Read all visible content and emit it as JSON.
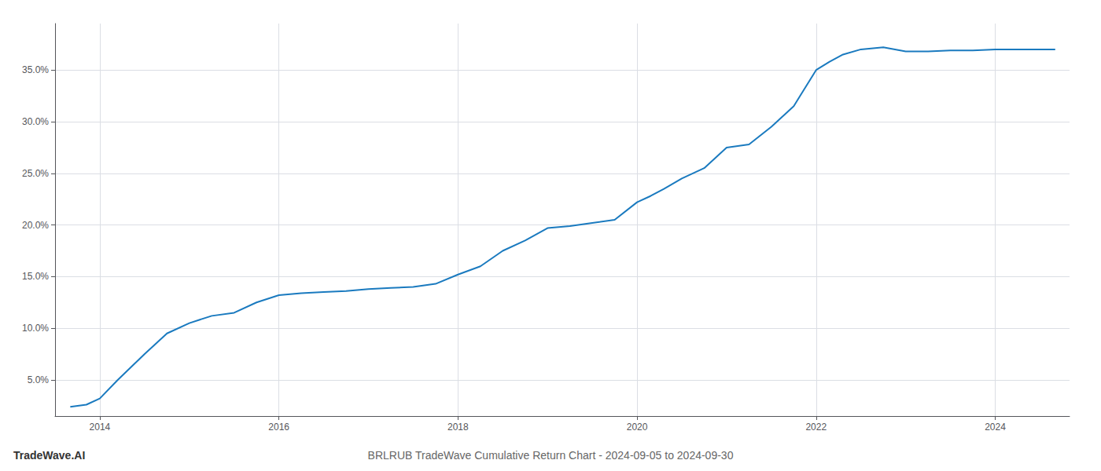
{
  "chart_data": {
    "type": "line",
    "title": "BRLRUB TradeWave Cumulative Return Chart - 2024-09-05 to 2024-09-30",
    "annotations": [
      "TradeWave.AI"
    ],
    "color": "#1a7abf",
    "x": [
      2013.67,
      2013.85,
      2014.0,
      2014.2,
      2014.5,
      2014.75,
      2015.0,
      2015.25,
      2015.5,
      2015.75,
      2016.0,
      2016.25,
      2016.5,
      2016.75,
      2017.0,
      2017.25,
      2017.5,
      2017.75,
      2018.0,
      2018.25,
      2018.5,
      2018.75,
      2019.0,
      2019.25,
      2019.5,
      2019.75,
      2020.0,
      2020.15,
      2020.3,
      2020.5,
      2020.75,
      2021.0,
      2021.25,
      2021.5,
      2021.75,
      2022.0,
      2022.15,
      2022.3,
      2022.5,
      2022.75,
      2023.0,
      2023.25,
      2023.5,
      2023.75,
      2024.0,
      2024.25,
      2024.5,
      2024.67
    ],
    "values": [
      2.4,
      2.6,
      3.2,
      5.0,
      7.5,
      9.5,
      10.5,
      11.2,
      11.5,
      12.5,
      13.2,
      13.4,
      13.5,
      13.6,
      13.8,
      13.9,
      14.0,
      14.3,
      15.2,
      16.0,
      17.5,
      18.5,
      19.7,
      19.9,
      20.2,
      20.5,
      22.2,
      22.8,
      23.5,
      24.5,
      25.5,
      27.5,
      27.8,
      29.5,
      31.5,
      35.0,
      35.8,
      36.5,
      37.0,
      37.2,
      36.8,
      36.8,
      36.9,
      36.9,
      37.0,
      37.0,
      37.0,
      37.0
    ],
    "xlim": [
      2013.5,
      2024.83
    ],
    "xticks": [
      2014,
      2016,
      2018,
      2020,
      2022,
      2024
    ],
    "ylim": [
      1.5,
      39.5
    ],
    "yticks": [
      {
        "value": 5,
        "label": "5.0%"
      },
      {
        "value": 10,
        "label": "10.0%"
      },
      {
        "value": 15,
        "label": "15.0%"
      },
      {
        "value": 20,
        "label": "20.0%"
      },
      {
        "value": 25,
        "label": "25.0%"
      },
      {
        "value": 30,
        "label": "30.0%"
      },
      {
        "value": 35,
        "label": "35.0%"
      }
    ],
    "grid": true
  }
}
